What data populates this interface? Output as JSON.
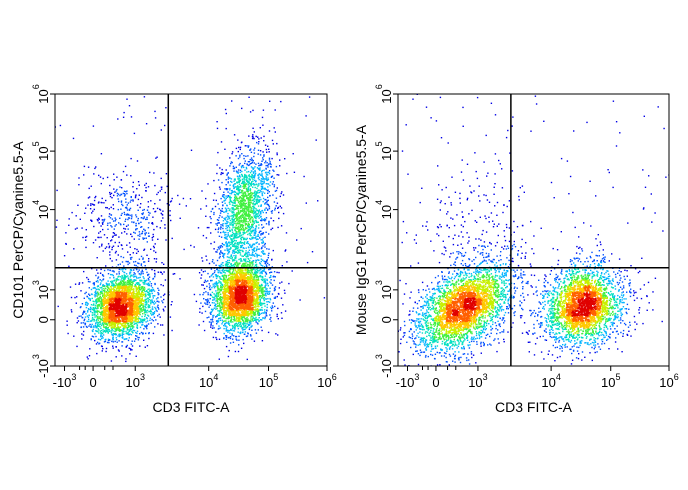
{
  "chart_data": [
    {
      "type": "scatter",
      "subtype": "flow-cytometry-density-dot-plot",
      "xlabel": "CD3 FITC-A",
      "ylabel": "CD101 PerCP/Cyanine5.5-A",
      "x_scale": "biexponential",
      "y_scale": "biexponential",
      "xlim": [
        -1500,
        1000000
      ],
      "ylim": [
        -1000,
        1000000
      ],
      "x_ticks": [
        {
          "base": "-10",
          "exp": "3",
          "value": -1000
        },
        {
          "base": "0",
          "exp": "",
          "value": 0
        },
        {
          "base": "10",
          "exp": "3",
          "value": 1000
        },
        {
          "base": "10",
          "exp": "4",
          "value": 10000
        },
        {
          "base": "10",
          "exp": "5",
          "value": 100000
        },
        {
          "base": "10",
          "exp": "6",
          "value": 1000000
        }
      ],
      "y_ticks": [
        {
          "base": "-10",
          "exp": "3",
          "value": -1000
        },
        {
          "base": "0",
          "exp": "",
          "value": 0
        },
        {
          "base": "10",
          "exp": "3",
          "value": 1000
        },
        {
          "base": "10",
          "exp": "4",
          "value": 10000
        },
        {
          "base": "10",
          "exp": "5",
          "value": 100000
        },
        {
          "base": "10",
          "exp": "6",
          "value": 1000000
        }
      ],
      "quadrant_gate": {
        "x": 3000,
        "y": 2000
      },
      "populations": [
        {
          "x_center": 500,
          "y_center": 300,
          "density": "high"
        },
        {
          "x_center": 35000,
          "y_center": 700,
          "density": "high"
        },
        {
          "x_center": 40000,
          "y_center": 10000,
          "density": "medium"
        },
        {
          "x_center": 600,
          "y_center": 8000,
          "density": "low"
        }
      ]
    },
    {
      "type": "scatter",
      "subtype": "flow-cytometry-density-dot-plot",
      "xlabel": "CD3 FITC-A",
      "ylabel": "Mouse IgG1 PerCP/Cyanine5.5-A",
      "x_scale": "biexponential",
      "y_scale": "biexponential",
      "xlim": [
        -1500,
        1000000
      ],
      "ylim": [
        -1000,
        1000000
      ],
      "x_ticks": [
        {
          "base": "-10",
          "exp": "3",
          "value": -1000
        },
        {
          "base": "0",
          "exp": "",
          "value": 0
        },
        {
          "base": "10",
          "exp": "3",
          "value": 1000
        },
        {
          "base": "10",
          "exp": "4",
          "value": 10000
        },
        {
          "base": "10",
          "exp": "5",
          "value": 100000
        },
        {
          "base": "10",
          "exp": "6",
          "value": 1000000
        }
      ],
      "y_ticks": [
        {
          "base": "-10",
          "exp": "3",
          "value": -1000
        },
        {
          "base": "0",
          "exp": "",
          "value": 0
        },
        {
          "base": "10",
          "exp": "3",
          "value": 1000
        },
        {
          "base": "10",
          "exp": "4",
          "value": 10000
        },
        {
          "base": "10",
          "exp": "5",
          "value": 100000
        },
        {
          "base": "10",
          "exp": "6",
          "value": 1000000
        }
      ],
      "quadrant_gate": {
        "x": 3000,
        "y": 2000
      },
      "populations": [
        {
          "x_center": 500,
          "y_center": 250,
          "density": "high"
        },
        {
          "x_center": 35000,
          "y_center": 300,
          "density": "high"
        },
        {
          "x_center": 700,
          "y_center": 8000,
          "density": "very-low"
        }
      ]
    }
  ],
  "colormap": [
    "#0000e6",
    "#0050ff",
    "#00b4ff",
    "#00e0c0",
    "#40f040",
    "#c8f000",
    "#ffc800",
    "#ff6000",
    "#e00000"
  ]
}
